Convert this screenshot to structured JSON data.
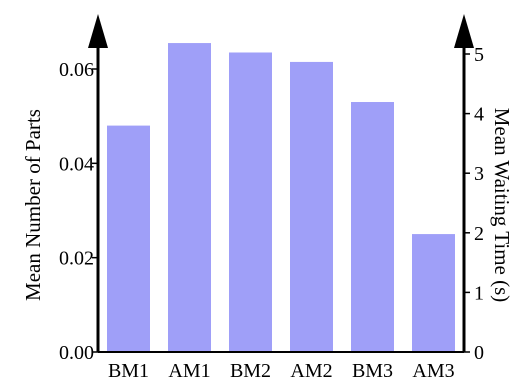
{
  "chart_data": {
    "type": "bar",
    "categories": [
      "BM1",
      "AM1",
      "BM2",
      "AM2",
      "BM3",
      "AM3"
    ],
    "values": [
      0.048,
      0.0655,
      0.0635,
      0.0615,
      0.053,
      0.025
    ],
    "ylabel": "Mean Number of Parts",
    "ylim": [
      0,
      0.072
    ],
    "yticks": [
      "0.00",
      "0.02",
      "0.04",
      "0.06"
    ],
    "y2label": "Mean Waiting Time (s)",
    "y2lim": [
      0,
      5.7
    ],
    "y2ticks": [
      "0",
      "1",
      "2",
      "3",
      "4",
      "5"
    ],
    "bar_color": "#9f9ff8",
    "grid": false,
    "legend": "none"
  }
}
